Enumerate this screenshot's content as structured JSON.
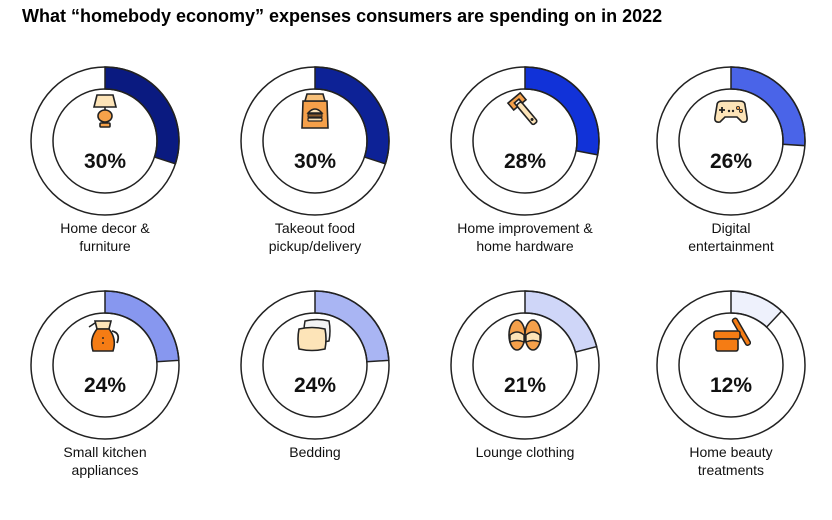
{
  "title": "What “homebody economy” expenses consumers are spending on in 2022",
  "chart_data": {
    "type": "donut",
    "unit": "%",
    "items": [
      {
        "label_lines": [
          "Home decor &",
          "furniture"
        ],
        "value": 30,
        "value_text": "30%",
        "color": "#0a1a80",
        "icon": "lamp-icon"
      },
      {
        "label_lines": [
          "Takeout food",
          "pickup/delivery"
        ],
        "value": 30,
        "value_text": "30%",
        "color": "#0d2296",
        "icon": "food-bag-icon"
      },
      {
        "label_lines": [
          "Home improvement &",
          "home hardware"
        ],
        "value": 28,
        "value_text": "28%",
        "color": "#1132d8",
        "icon": "wrench-icon"
      },
      {
        "label_lines": [
          "Digital",
          "entertainment"
        ],
        "value": 26,
        "value_text": "26%",
        "color": "#4a64e8",
        "icon": "gamepad-icon"
      },
      {
        "label_lines": [
          "Small kitchen",
          "appliances"
        ],
        "value": 24,
        "value_text": "24%",
        "color": "#8797ef",
        "icon": "coffee-pot-icon"
      },
      {
        "label_lines": [
          "Bedding",
          ""
        ],
        "value": 24,
        "value_text": "24%",
        "color": "#a9b5f3",
        "icon": "pillow-icon"
      },
      {
        "label_lines": [
          "Lounge clothing",
          ""
        ],
        "value": 21,
        "value_text": "21%",
        "color": "#cfd6f8",
        "icon": "slippers-icon"
      },
      {
        "label_lines": [
          "Home beauty",
          "treatments"
        ],
        "value": 12,
        "value_text": "12%",
        "color": "#eef1fc",
        "icon": "cream-jar-icon"
      }
    ]
  }
}
